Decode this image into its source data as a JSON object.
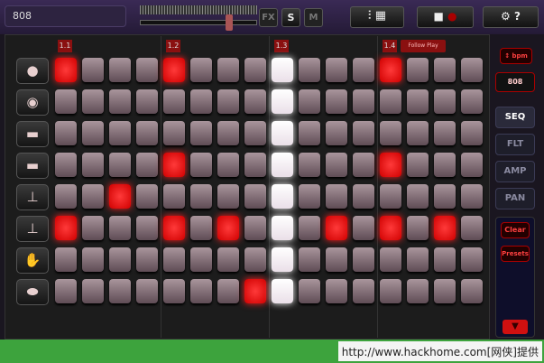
{
  "header": {
    "kit": "808",
    "fx": "FX",
    "solo": "S",
    "mute": "M"
  },
  "bars": [
    "1.1",
    "1.2",
    "1.3",
    "1.4"
  ],
  "follow_play": "Follow Play",
  "sidebar": {
    "kit": "808",
    "tabs": [
      "SEQ",
      "FLT",
      "AMP",
      "PAN"
    ],
    "clear": "Clear",
    "presets": "Presets"
  },
  "pattern": [
    [
      true,
      false,
      false,
      false,
      true,
      false,
      false,
      false,
      false,
      false,
      false,
      false,
      true,
      false,
      false,
      false
    ],
    [
      false,
      false,
      false,
      false,
      false,
      false,
      false,
      false,
      false,
      false,
      false,
      false,
      false,
      false,
      false,
      false
    ],
    [
      false,
      false,
      false,
      false,
      false,
      false,
      false,
      false,
      false,
      false,
      false,
      false,
      false,
      false,
      false,
      false
    ],
    [
      false,
      false,
      false,
      false,
      true,
      false,
      false,
      false,
      false,
      false,
      false,
      false,
      true,
      false,
      false,
      false
    ],
    [
      false,
      false,
      true,
      false,
      false,
      false,
      false,
      false,
      false,
      false,
      false,
      false,
      false,
      false,
      false,
      false
    ],
    [
      true,
      false,
      false,
      false,
      true,
      false,
      true,
      false,
      false,
      false,
      true,
      false,
      true,
      false,
      true,
      false
    ],
    [
      false,
      false,
      false,
      false,
      false,
      false,
      false,
      false,
      false,
      false,
      false,
      false,
      false,
      false,
      false,
      false
    ],
    [
      false,
      false,
      false,
      false,
      false,
      false,
      false,
      true,
      false,
      false,
      false,
      false,
      false,
      false,
      false,
      false
    ]
  ],
  "watermark": "http://www.hackhome.com[网侠]提供"
}
